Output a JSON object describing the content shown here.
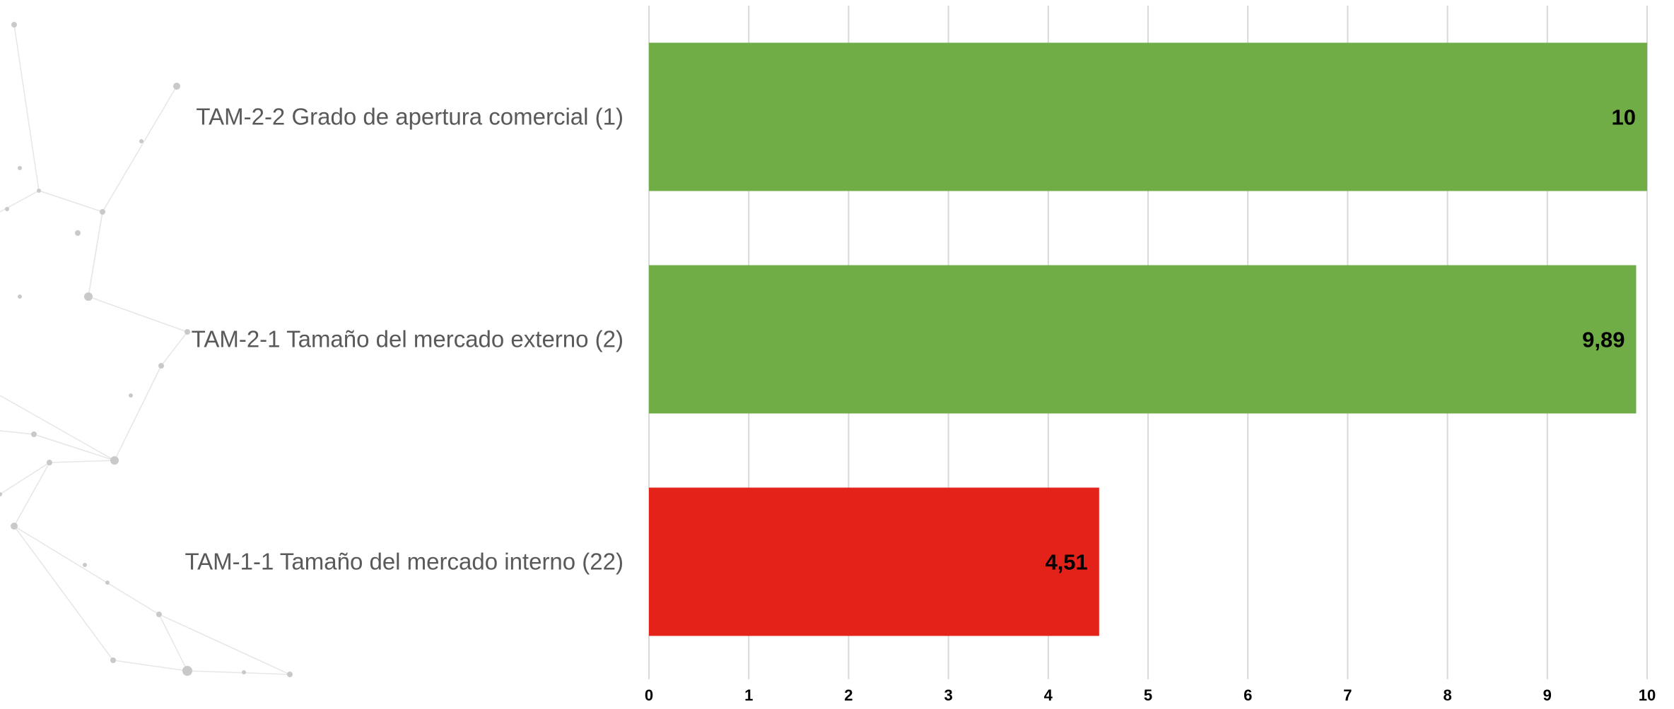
{
  "chart_data": {
    "type": "bar",
    "orientation": "horizontal",
    "categories": [
      "TAM-2-2 Grado de apertura comercial (1)",
      "TAM-2-1 Tamaño del mercado externo (2)",
      "TAM-1-1 Tamaño del mercado interno (22)"
    ],
    "values": [
      10,
      9.89,
      4.51
    ],
    "data_labels": [
      "10",
      "9,89",
      "4,51"
    ],
    "bar_colors": [
      "#70AD47",
      "#70AD47",
      "#E3221A"
    ],
    "xlim": [
      0,
      10
    ],
    "x_ticks": [
      "0",
      "1",
      "2",
      "3",
      "4",
      "5",
      "6",
      "7",
      "8",
      "9",
      "10"
    ],
    "title": "",
    "xlabel": "",
    "ylabel": "",
    "grid": "vertical",
    "legend": "none"
  },
  "colors": {
    "good": "#70AD47",
    "bad": "#E3221A",
    "grid": "#D9D9D9",
    "category_text": "#595959"
  }
}
